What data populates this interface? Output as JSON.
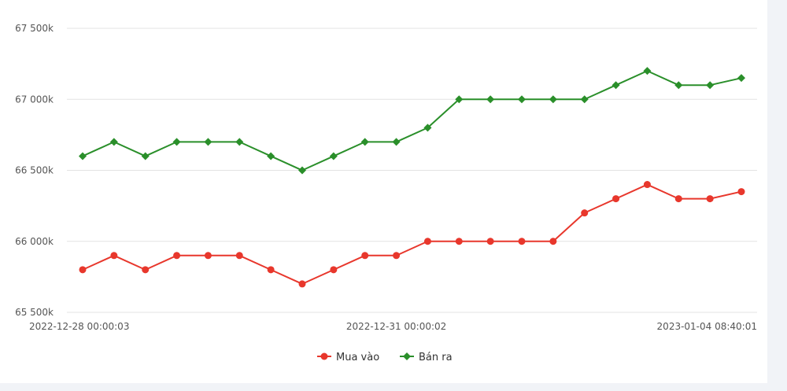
{
  "chart_data": {
    "type": "line",
    "title": "",
    "xlabel": "",
    "ylabel": "",
    "ylim": [
      65500,
      67500
    ],
    "yticks": [
      65500,
      66000,
      66500,
      67000,
      67500
    ],
    "ytick_labels": [
      "65 500k",
      "66 000k",
      "66 500k",
      "67 000k",
      "67 500k"
    ],
    "grid": true,
    "legend_position": "bottom-center",
    "x_labels_shown": [
      {
        "index": 0,
        "label": "2022-12-28 00:00:03"
      },
      {
        "index": 10,
        "label": "2022-12-31 00:00:02"
      },
      {
        "index": 21,
        "label": "2023-01-04 08:40:01"
      }
    ],
    "series": [
      {
        "name": "Mua vào",
        "color": "#e8372c",
        "marker": "circle",
        "values": [
          65800,
          65900,
          65800,
          65900,
          65900,
          65900,
          65800,
          65700,
          65800,
          65900,
          65900,
          66000,
          66000,
          66000,
          66000,
          66000,
          66200,
          66300,
          66400,
          66300,
          66300,
          66350
        ]
      },
      {
        "name": "Bán ra",
        "color": "#2a8f2a",
        "marker": "diamond",
        "values": [
          66600,
          66700,
          66600,
          66700,
          66700,
          66700,
          66600,
          66500,
          66600,
          66700,
          66700,
          66800,
          67000,
          67000,
          67000,
          67000,
          67000,
          67100,
          67200,
          67100,
          67100,
          67150
        ]
      }
    ]
  }
}
